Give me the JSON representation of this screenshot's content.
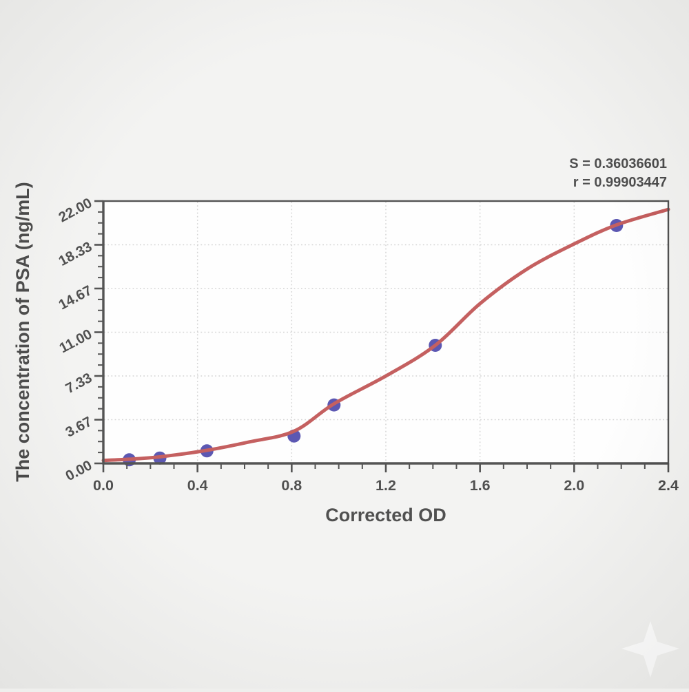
{
  "chart_data": {
    "type": "scatter",
    "subtype": "standard-curve-with-sigmoid-fit",
    "title": "",
    "xlabel": "Corrected OD",
    "ylabel": "The concentration of PSA (ng/mL)",
    "xlim": [
      0,
      2.4
    ],
    "ylim": [
      0,
      22
    ],
    "grid": "dotted lines at every major tick, on",
    "legend_position": "none",
    "x_major_ticks": [
      {
        "v": 0.0,
        "label": "0.0"
      },
      {
        "v": 0.4,
        "label": "0.4"
      },
      {
        "v": 0.8,
        "label": "0.8"
      },
      {
        "v": 1.2,
        "label": "1.2"
      },
      {
        "v": 1.6,
        "label": "1.6"
      },
      {
        "v": 2.0,
        "label": "2.0"
      },
      {
        "v": 2.4,
        "label": "2.4"
      }
    ],
    "x_minor_step": 0.1,
    "y_major_ticks": [
      {
        "v": 0.0,
        "label": "0.00"
      },
      {
        "v": 3.667,
        "label": "3.67"
      },
      {
        "v": 7.333,
        "label": "7.33"
      },
      {
        "v": 11.0,
        "label": "11.00"
      },
      {
        "v": 14.667,
        "label": "14.67"
      },
      {
        "v": 18.333,
        "label": "18.33"
      },
      {
        "v": 22.0,
        "label": "22.00"
      }
    ],
    "y_minor_divisions_per_major": 4,
    "points": [
      {
        "od": 0.11,
        "conc": 0.3
      },
      {
        "od": 0.24,
        "conc": 0.45
      },
      {
        "od": 0.44,
        "conc": 1.05
      },
      {
        "od": 0.81,
        "conc": 2.3
      },
      {
        "od": 0.98,
        "conc": 4.9
      },
      {
        "od": 1.41,
        "conc": 9.9
      },
      {
        "od": 2.18,
        "conc": 19.95
      }
    ],
    "fit_curve_anchors": [
      [
        0.0,
        0.25
      ],
      [
        0.11,
        0.35
      ],
      [
        0.24,
        0.55
      ],
      [
        0.44,
        1.1
      ],
      [
        0.62,
        1.8
      ],
      [
        0.81,
        2.7
      ],
      [
        0.98,
        5.0
      ],
      [
        1.2,
        7.33
      ],
      [
        1.41,
        9.9
      ],
      [
        1.6,
        13.4
      ],
      [
        1.8,
        16.3
      ],
      [
        2.0,
        18.4
      ],
      [
        2.18,
        20.0
      ],
      [
        2.4,
        21.3
      ]
    ],
    "annotations": {
      "s": "S = 0.36036601",
      "r": "r = 0.99903447"
    },
    "colors": {
      "curve": "#b12b2b",
      "points": "#262099",
      "grid": "#c6c6c6",
      "frame": "#1b1b1b",
      "text": "#161616",
      "plot_bg": "#fefefe",
      "page_bg": "#efefed"
    }
  },
  "watermark": {
    "icon": "sparkle-icon",
    "color": "#ffffff"
  }
}
